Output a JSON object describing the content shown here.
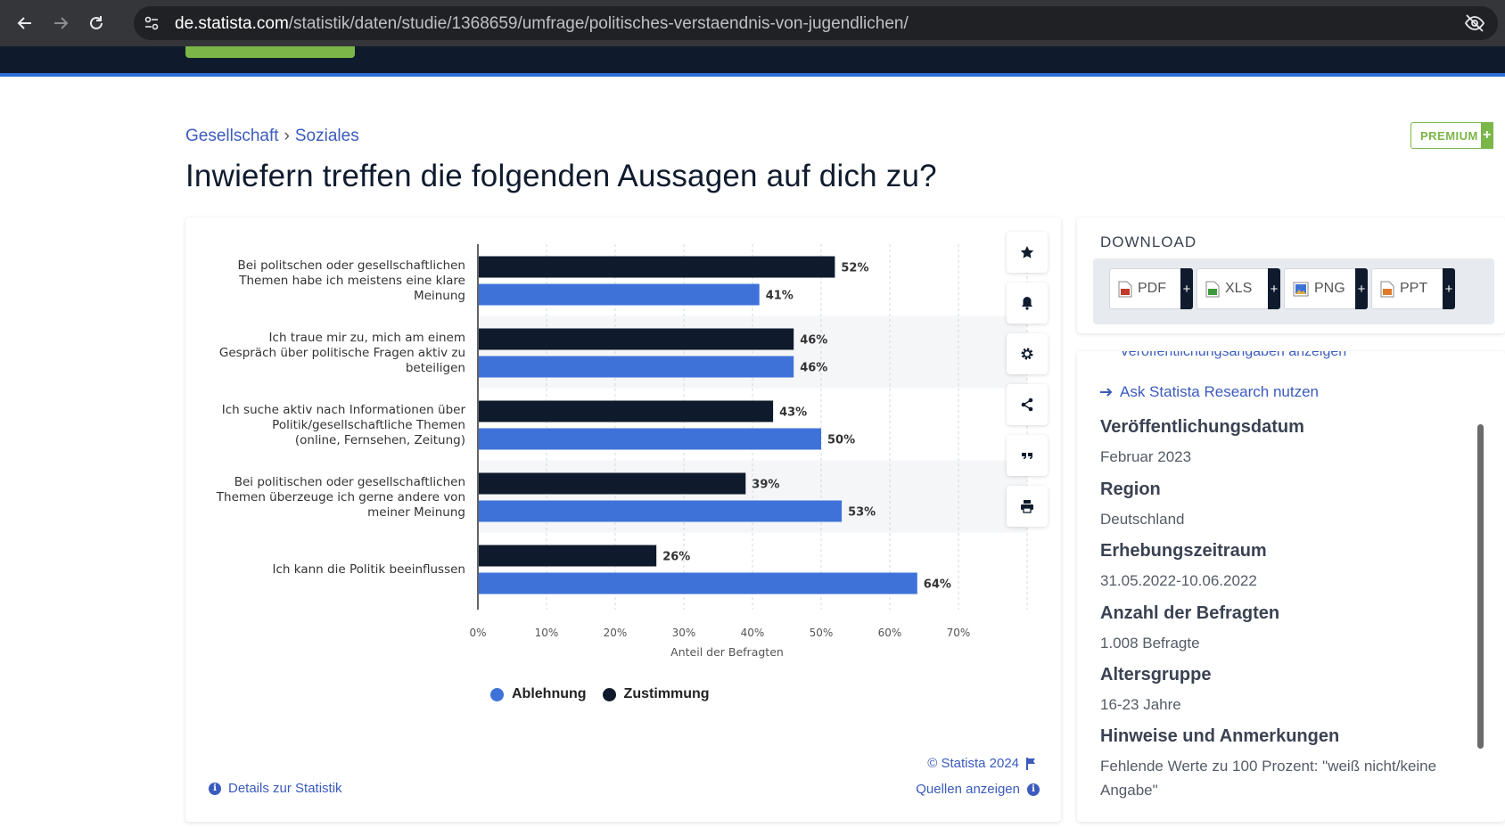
{
  "browser": {
    "url_domain": "de.statista.com",
    "url_path": "/statistik/daten/studie/1368659/umfrage/politisches-verstaendnis-von-jugendlichen/"
  },
  "breadcrumb": {
    "items": [
      "Gesellschaft",
      "Soziales"
    ],
    "separator": "›"
  },
  "premium_badge": {
    "label": "PREMIUM",
    "plus": "+"
  },
  "page_title": "Inwiefern treffen die folgenden Aussagen auf dich zu?",
  "toolbar": {
    "icons": [
      "star-icon",
      "bell-icon",
      "gear-icon",
      "share-icon",
      "quote-icon",
      "print-icon"
    ]
  },
  "chart_data": {
    "type": "bar",
    "orientation": "horizontal",
    "categories": [
      [
        "Bei politschen oder gesellschaftlichen",
        "Themen habe ich meistens eine klare",
        "Meinung"
      ],
      [
        "Ich traue mir zu, mich am einem",
        "Gespräch über politische Fragen aktiv zu",
        "beteiligen"
      ],
      [
        "Ich suche aktiv nach Informationen über",
        "Politik/gesellschaftliche Themen",
        "(online, Fernsehen, Zeitung)"
      ],
      [
        "Bei politischen oder gesellschaftlichen",
        "Themen überzeuge ich gerne andere von",
        "meiner Meinung"
      ],
      [
        "Ich kann die Politik beeinflussen"
      ]
    ],
    "series": [
      {
        "name": "Zustimmung",
        "color": "#0f1b2d",
        "values": [
          52,
          46,
          43,
          39,
          26
        ]
      },
      {
        "name": "Ablehnung",
        "color": "#3f72d9",
        "values": [
          41,
          46,
          50,
          53,
          64
        ]
      }
    ],
    "value_suffix": "%",
    "xlim": [
      0,
      80
    ],
    "x_ticks": [
      "0%",
      "10%",
      "20%",
      "30%",
      "40%",
      "50%",
      "60%",
      "70%"
    ],
    "xlabel": "Anteil der Befragten",
    "legend": [
      "Ablehnung",
      "Zustimmung"
    ],
    "legend_placement": "bottom",
    "grid": true,
    "grid_style": "dashed-vertical"
  },
  "chart_footer": {
    "copyright": "© Statista 2024",
    "details_link": "Details zur Statistik",
    "sources_link": "Quellen anzeigen"
  },
  "download": {
    "title": "DOWNLOAD",
    "buttons": [
      {
        "label": "PDF",
        "icon": "pdf-file-icon",
        "color": "#c0392b"
      },
      {
        "label": "XLS",
        "icon": "xls-file-icon",
        "color": "#3c9a3c"
      },
      {
        "label": "PNG",
        "icon": "png-file-icon",
        "color": "#3f72d9"
      },
      {
        "label": "PPT",
        "icon": "ppt-file-icon",
        "color": "#e07b2a"
      }
    ],
    "plus": "+"
  },
  "info_panel": {
    "cut_link": "Veröffentlichungsangaben anzeigen",
    "ask_link": "Ask Statista Research nutzen",
    "items": [
      {
        "label": "Veröffentlichungsdatum",
        "value": "Februar 2023"
      },
      {
        "label": "Region",
        "value": "Deutschland"
      },
      {
        "label": "Erhebungszeitraum",
        "value": "31.05.2022-10.06.2022"
      },
      {
        "label": "Anzahl der Befragten",
        "value": "1.008 Befragte"
      },
      {
        "label": "Altersgruppe",
        "value": "16-23 Jahre"
      },
      {
        "label": "Hinweise und Anmerkungen",
        "value": "Fehlende Werte zu 100 Prozent: \"weiß nicht/keine Angabe\""
      }
    ]
  },
  "colors": {
    "navy": "#0f1b2d",
    "blue": "#3f72d9",
    "link": "#3b5bbd",
    "green": "#7ab648"
  }
}
